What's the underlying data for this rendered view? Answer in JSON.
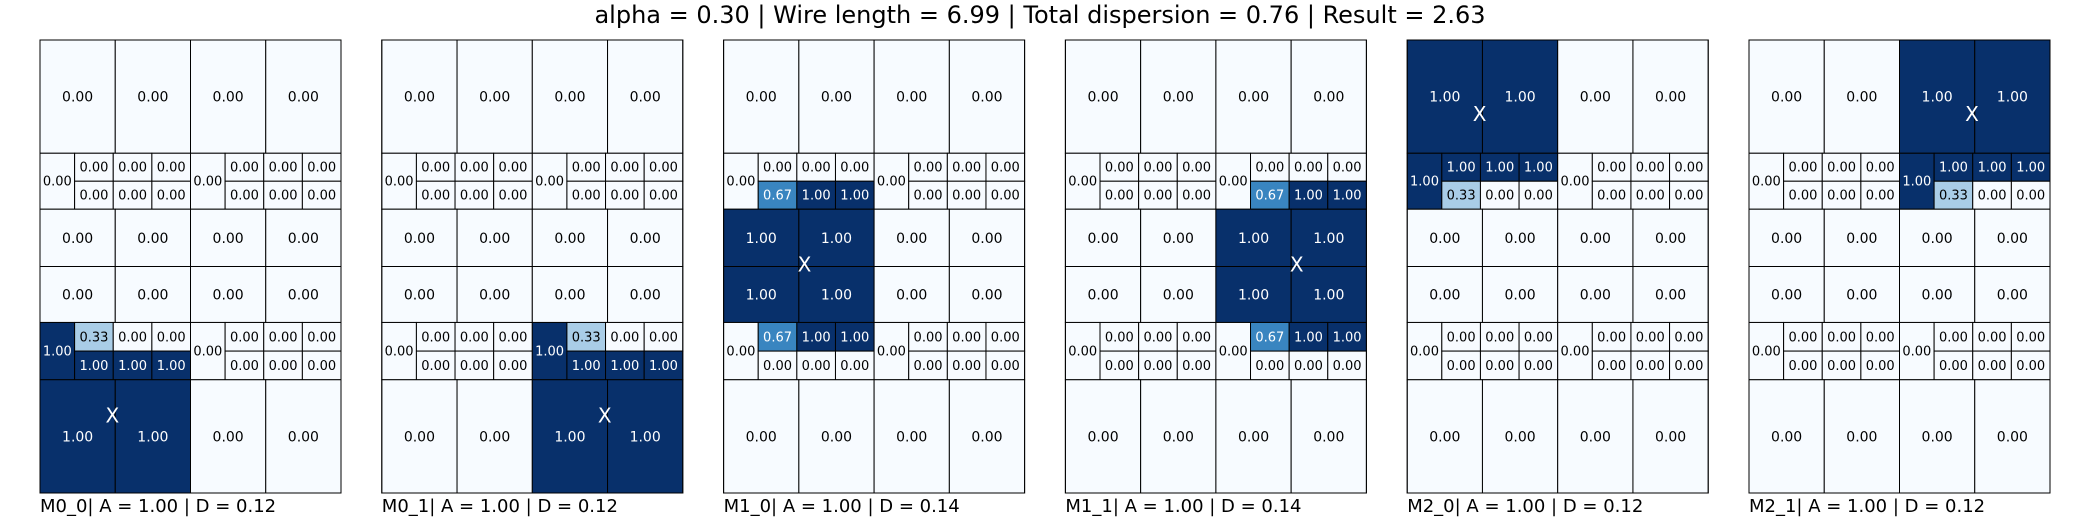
{
  "title": "alpha = 0.30 | Wire length = 6.99 | Total dispersion = 0.76 | Result = 2.63",
  "marker": "X",
  "colormap": [
    "#f7fbff",
    "#c6dbef",
    "#6baed6",
    "#2171b5",
    "#08306b"
  ],
  "panels": [
    {
      "caption": "M0_0| A = 1.00 | D = 0.12",
      "rows": [
        [
          "0.00",
          "0.00",
          "0.00",
          "0.00"
        ],
        [
          {
            "main": "0.00",
            "top": [
              "0.00",
              "0.00",
              "0.00"
            ],
            "bottom": [
              "0.00",
              "0.00",
              "0.00"
            ]
          },
          {
            "main": "0.00",
            "top": [
              "0.00",
              "0.00",
              "0.00"
            ],
            "bottom": [
              "0.00",
              "0.00",
              "0.00"
            ]
          }
        ],
        [
          "0.00",
          "0.00",
          "0.00",
          "0.00"
        ],
        [
          "0.00",
          "0.00",
          "0.00",
          "0.00"
        ],
        [
          {
            "main": "1.00",
            "top": [
              "0.33",
              "0.00",
              "0.00"
            ],
            "bottom": [
              "1.00",
              "1.00",
              "1.00"
            ]
          },
          {
            "main": "0.00",
            "top": [
              "0.00",
              "0.00",
              "0.00"
            ],
            "bottom": [
              "0.00",
              "0.00",
              "0.00"
            ]
          }
        ],
        [
          "1.00",
          "1.00",
          "0.00",
          "0.00"
        ]
      ]
    },
    {
      "caption": "M0_1| A = 1.00 | D = 0.12",
      "rows": [
        [
          "0.00",
          "0.00",
          "0.00",
          "0.00"
        ],
        [
          {
            "main": "0.00",
            "top": [
              "0.00",
              "0.00",
              "0.00"
            ],
            "bottom": [
              "0.00",
              "0.00",
              "0.00"
            ]
          },
          {
            "main": "0.00",
            "top": [
              "0.00",
              "0.00",
              "0.00"
            ],
            "bottom": [
              "0.00",
              "0.00",
              "0.00"
            ]
          }
        ],
        [
          "0.00",
          "0.00",
          "0.00",
          "0.00"
        ],
        [
          "0.00",
          "0.00",
          "0.00",
          "0.00"
        ],
        [
          {
            "main": "0.00",
            "top": [
              "0.00",
              "0.00",
              "0.00"
            ],
            "bottom": [
              "0.00",
              "0.00",
              "0.00"
            ]
          },
          {
            "main": "1.00",
            "top": [
              "0.33",
              "0.00",
              "0.00"
            ],
            "bottom": [
              "1.00",
              "1.00",
              "1.00"
            ]
          }
        ],
        [
          "0.00",
          "0.00",
          "1.00",
          "1.00"
        ]
      ]
    },
    {
      "caption": "M1_0| A = 1.00 | D = 0.14",
      "rows": [
        [
          "0.00",
          "0.00",
          "0.00",
          "0.00"
        ],
        [
          {
            "main": "0.00",
            "top": [
              "0.00",
              "0.00",
              "0.00"
            ],
            "bottom": [
              "0.67",
              "1.00",
              "1.00"
            ]
          },
          {
            "main": "0.00",
            "top": [
              "0.00",
              "0.00",
              "0.00"
            ],
            "bottom": [
              "0.00",
              "0.00",
              "0.00"
            ]
          }
        ],
        [
          "1.00",
          "1.00",
          "0.00",
          "0.00"
        ],
        [
          "1.00",
          "1.00",
          "0.00",
          "0.00"
        ],
        [
          {
            "main": "0.00",
            "top": [
              "0.67",
              "1.00",
              "1.00"
            ],
            "bottom": [
              "0.00",
              "0.00",
              "0.00"
            ]
          },
          {
            "main": "0.00",
            "top": [
              "0.00",
              "0.00",
              "0.00"
            ],
            "bottom": [
              "0.00",
              "0.00",
              "0.00"
            ]
          }
        ],
        [
          "0.00",
          "0.00",
          "0.00",
          "0.00"
        ]
      ]
    },
    {
      "caption": "M1_1| A = 1.00 | D = 0.14",
      "rows": [
        [
          "0.00",
          "0.00",
          "0.00",
          "0.00"
        ],
        [
          {
            "main": "0.00",
            "top": [
              "0.00",
              "0.00",
              "0.00"
            ],
            "bottom": [
              "0.00",
              "0.00",
              "0.00"
            ]
          },
          {
            "main": "0.00",
            "top": [
              "0.00",
              "0.00",
              "0.00"
            ],
            "bottom": [
              "0.67",
              "1.00",
              "1.00"
            ]
          }
        ],
        [
          "0.00",
          "0.00",
          "1.00",
          "1.00"
        ],
        [
          "0.00",
          "0.00",
          "1.00",
          "1.00"
        ],
        [
          {
            "main": "0.00",
            "top": [
              "0.00",
              "0.00",
              "0.00"
            ],
            "bottom": [
              "0.00",
              "0.00",
              "0.00"
            ]
          },
          {
            "main": "0.00",
            "top": [
              "0.67",
              "1.00",
              "1.00"
            ],
            "bottom": [
              "0.00",
              "0.00",
              "0.00"
            ]
          }
        ],
        [
          "0.00",
          "0.00",
          "0.00",
          "0.00"
        ]
      ]
    },
    {
      "caption": "M2_0| A = 1.00 | D = 0.12",
      "rows": [
        [
          "1.00",
          "1.00",
          "0.00",
          "0.00"
        ],
        [
          {
            "main": "1.00",
            "top": [
              "1.00",
              "1.00",
              "1.00"
            ],
            "bottom": [
              "0.33",
              "0.00",
              "0.00"
            ]
          },
          {
            "main": "0.00",
            "top": [
              "0.00",
              "0.00",
              "0.00"
            ],
            "bottom": [
              "0.00",
              "0.00",
              "0.00"
            ]
          }
        ],
        [
          "0.00",
          "0.00",
          "0.00",
          "0.00"
        ],
        [
          "0.00",
          "0.00",
          "0.00",
          "0.00"
        ],
        [
          {
            "main": "0.00",
            "top": [
              "0.00",
              "0.00",
              "0.00"
            ],
            "bottom": [
              "0.00",
              "0.00",
              "0.00"
            ]
          },
          {
            "main": "0.00",
            "top": [
              "0.00",
              "0.00",
              "0.00"
            ],
            "bottom": [
              "0.00",
              "0.00",
              "0.00"
            ]
          }
        ],
        [
          "0.00",
          "0.00",
          "0.00",
          "0.00"
        ]
      ]
    },
    {
      "caption": "M2_1| A = 1.00 | D = 0.12",
      "rows": [
        [
          "0.00",
          "0.00",
          "1.00",
          "1.00"
        ],
        [
          {
            "main": "0.00",
            "top": [
              "0.00",
              "0.00",
              "0.00"
            ],
            "bottom": [
              "0.00",
              "0.00",
              "0.00"
            ]
          },
          {
            "main": "1.00",
            "top": [
              "1.00",
              "1.00",
              "1.00"
            ],
            "bottom": [
              "0.33",
              "0.00",
              "0.00"
            ]
          }
        ],
        [
          "0.00",
          "0.00",
          "0.00",
          "0.00"
        ],
        [
          "0.00",
          "0.00",
          "0.00",
          "0.00"
        ],
        [
          {
            "main": "0.00",
            "top": [
              "0.00",
              "0.00",
              "0.00"
            ],
            "bottom": [
              "0.00",
              "0.00",
              "0.00"
            ]
          },
          {
            "main": "0.00",
            "top": [
              "0.00",
              "0.00",
              "0.00"
            ],
            "bottom": [
              "0.00",
              "0.00",
              "0.00"
            ]
          }
        ],
        [
          "0.00",
          "0.00",
          "0.00",
          "0.00"
        ]
      ]
    }
  ]
}
